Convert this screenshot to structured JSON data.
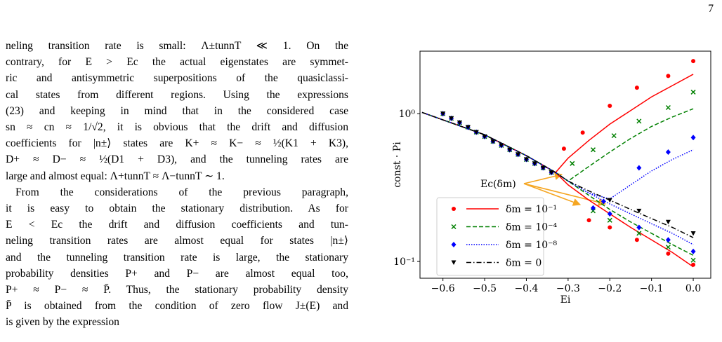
{
  "page_number": "7",
  "text_lines": [
    "neling transition rate is small: Λ±tunnT ≪ 1. On the",
    "contrary, for E > Ec the actual eigenstates are symmet-",
    "ric and antisymmetric superpositions of the quasiclassi-",
    "cal states from different regions. Using the expressions",
    "(23) and keeping in mind that in the considered case",
    "sn ≈ cn ≈ 1/√2, it is obvious that the drift and diffusion",
    "coefficients for |n±⟩ states are K+ ≈ K− ≈ ½(K1 + K3),",
    "D+ ≈ D− ≈ ½(D1 + D3), and the tunneling rates are",
    "large and almost equal: Λ+tunnT ≈ Λ−tunnT ∼ 1.",
    "From the considerations of the previous paragraph,",
    "it is easy to obtain the stationary distribution. As for",
    "E < Ec the drift and diffusion coefficients and tun-",
    "neling transition rates are almost equal for states |n±⟩",
    "and the tunneling transition rate is large, the stationary",
    "probability densities P+ and P− are almost equal too,",
    "P+ ≈ P− ≈ P̄. Thus, the stationary probability density",
    "P̄ is obtained from the condition of zero flow J±(E) and",
    "is given by the expression"
  ],
  "chart_data": {
    "type": "scatter",
    "x_label": "Ei",
    "y_label": "const · Pi",
    "annotation": "Ec(δm)",
    "log_y": true,
    "xlim": [
      -0.655,
      0.042
    ],
    "ylim": [
      0.077,
      2.65
    ],
    "xticks": [
      {
        "value": -0.6,
        "label": "−0.6"
      },
      {
        "value": -0.5,
        "label": "−0.5"
      },
      {
        "value": -0.4,
        "label": "−0.4"
      },
      {
        "value": -0.3,
        "label": "−0.3"
      },
      {
        "value": -0.2,
        "label": "−0.2"
      },
      {
        "value": -0.1,
        "label": "−0.1"
      },
      {
        "value": 0.0,
        "label": "0.0"
      }
    ],
    "yticks": [
      {
        "value": 0.1,
        "label": "10⁻¹"
      },
      {
        "value": 1,
        "label": "10⁰"
      }
    ],
    "legend": "lower-left",
    "curve_x": [
      -0.65,
      -0.5,
      -0.4,
      -0.33,
      -0.3,
      -0.25,
      -0.2,
      -0.15,
      -0.1,
      -0.05,
      0.0
    ],
    "series": [
      {
        "name": "δm = 10⁻¹",
        "color": "#ff0000",
        "marker": "circle",
        "dash": "solid",
        "x": [
          -0.6,
          -0.58,
          -0.56,
          -0.54,
          -0.52,
          -0.5,
          -0.48,
          -0.46,
          -0.44,
          -0.42,
          -0.4,
          -0.38,
          -0.36,
          -0.34,
          -0.31,
          -0.265,
          -0.2,
          -0.135,
          -0.06,
          0.0,
          -0.25,
          -0.2,
          -0.135,
          -0.06,
          0.0
        ],
        "values": [
          1.0,
          0.93,
          0.87,
          0.81,
          0.75,
          0.7,
          0.65,
          0.61,
          0.57,
          0.53,
          0.49,
          0.46,
          0.43,
          0.4,
          0.58,
          0.745,
          1.13,
          1.5,
          1.8,
          2.27,
          0.19,
          0.17,
          0.14,
          0.113,
          0.095
        ],
        "curve_upper": [
          1.02,
          0.72,
          0.52,
          0.4,
          0.5,
          0.66,
          0.85,
          1.05,
          1.3,
          1.55,
          1.85
        ],
        "curve_lower": [
          1.02,
          0.72,
          0.52,
          0.4,
          0.33,
          0.26,
          0.21,
          0.17,
          0.14,
          0.115,
          0.092
        ]
      },
      {
        "name": "δm = 10⁻⁴",
        "color": "#008000",
        "marker": "cross",
        "dash": "dashed",
        "x": [
          -0.6,
          -0.58,
          -0.56,
          -0.54,
          -0.52,
          -0.5,
          -0.48,
          -0.46,
          -0.44,
          -0.42,
          -0.4,
          -0.38,
          -0.36,
          -0.34,
          -0.29,
          -0.24,
          -0.19,
          -0.13,
          -0.06,
          0.0,
          -0.24,
          -0.2,
          -0.13,
          -0.06,
          0.0
        ],
        "values": [
          1.0,
          0.93,
          0.87,
          0.81,
          0.75,
          0.7,
          0.65,
          0.61,
          0.57,
          0.53,
          0.49,
          0.46,
          0.43,
          0.4,
          0.46,
          0.57,
          0.71,
          0.89,
          1.1,
          1.4,
          0.22,
          0.19,
          0.155,
          0.125,
          0.102
        ],
        "curve_upper": [
          1.02,
          0.72,
          0.52,
          0.4,
          0.35,
          0.44,
          0.55,
          0.68,
          0.82,
          0.95,
          1.08
        ],
        "curve_lower": [
          1.02,
          0.72,
          0.52,
          0.4,
          0.35,
          0.28,
          0.225,
          0.185,
          0.155,
          0.13,
          0.11
        ]
      },
      {
        "name": "δm = 10⁻⁸",
        "color": "#0000ff",
        "marker": "diamond",
        "dash": "dotted",
        "x": [
          -0.6,
          -0.58,
          -0.56,
          -0.54,
          -0.52,
          -0.5,
          -0.48,
          -0.46,
          -0.44,
          -0.42,
          -0.4,
          -0.38,
          -0.36,
          -0.34,
          -0.215,
          -0.13,
          -0.06,
          0.0,
          -0.24,
          -0.2,
          -0.13,
          -0.06,
          0.0
        ],
        "values": [
          1.0,
          0.93,
          0.87,
          0.81,
          0.75,
          0.7,
          0.65,
          0.61,
          0.57,
          0.53,
          0.49,
          0.46,
          0.43,
          0.4,
          0.255,
          0.43,
          0.55,
          0.69,
          0.23,
          0.21,
          0.17,
          0.14,
          0.117
        ],
        "curve_upper": [
          1.02,
          0.72,
          0.52,
          0.4,
          0.35,
          0.29,
          0.265,
          0.33,
          0.41,
          0.49,
          0.57
        ],
        "curve_lower": [
          1.02,
          0.72,
          0.52,
          0.4,
          0.35,
          0.29,
          0.245,
          0.21,
          0.18,
          0.155,
          0.13
        ]
      },
      {
        "name": "δm = 0",
        "color": "#000000",
        "marker": "triangle",
        "dash": "dashdot",
        "x": [
          -0.6,
          -0.58,
          -0.56,
          -0.54,
          -0.52,
          -0.5,
          -0.48,
          -0.46,
          -0.44,
          -0.42,
          -0.4,
          -0.38,
          -0.36,
          -0.34,
          -0.2,
          -0.13,
          -0.06,
          0.0
        ],
        "values": [
          1.0,
          0.93,
          0.87,
          0.81,
          0.75,
          0.7,
          0.65,
          0.61,
          0.57,
          0.53,
          0.49,
          0.46,
          0.43,
          0.4,
          0.26,
          0.22,
          0.185,
          0.155
        ],
        "curve_upper": [
          1.02,
          0.72,
          0.52,
          0.4,
          0.35,
          0.3,
          0.26,
          0.225,
          0.195,
          0.17,
          0.145
        ]
      }
    ]
  }
}
